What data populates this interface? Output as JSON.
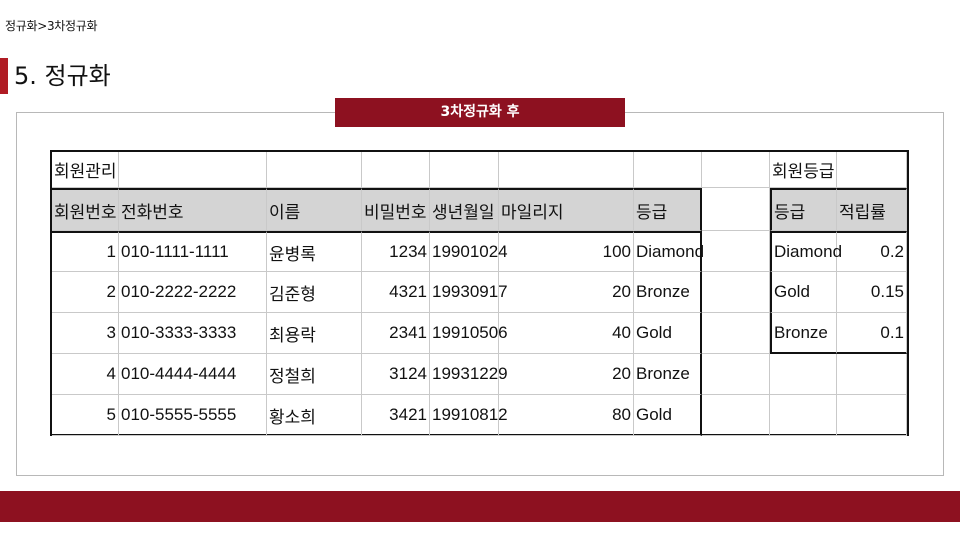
{
  "breadcrumb": "정규화>3차정규화",
  "page_title": "5. 정규화",
  "caption": "3차정규화 후",
  "members": {
    "title": "회원관리",
    "headers": [
      "회원번호",
      "전화번호",
      "이름",
      "비밀번호",
      "생년월일",
      "마일리지",
      "등급"
    ],
    "rows": [
      [
        "1",
        "010-1111-1111",
        "윤병록",
        "1234",
        "19901024",
        "100",
        "Diamond"
      ],
      [
        "2",
        "010-2222-2222",
        "김준형",
        "4321",
        "19930917",
        "20",
        "Bronze"
      ],
      [
        "3",
        "010-3333-3333",
        "최용락",
        "2341",
        "19910506",
        "40",
        "Gold"
      ],
      [
        "4",
        "010-4444-4444",
        "정철희",
        "3124",
        "19931229",
        "20",
        "Bronze"
      ],
      [
        "5",
        "010-5555-5555",
        "황소희",
        "3421",
        "19910812",
        "80",
        "Gold"
      ]
    ]
  },
  "grades": {
    "title": "회원등급",
    "headers": [
      "등급",
      "적립률"
    ],
    "rows": [
      [
        "Diamond",
        "0.2"
      ],
      [
        "Gold",
        "0.15"
      ],
      [
        "Bronze",
        "0.1"
      ]
    ]
  },
  "colors": {
    "accent": "#8d1120",
    "marker": "#b01c24",
    "header_fill": "#d4d4d4"
  }
}
